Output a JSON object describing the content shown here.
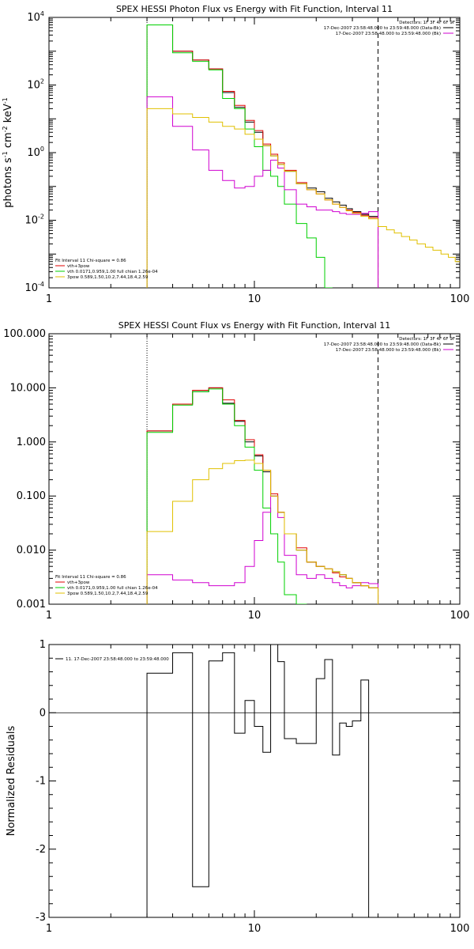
{
  "chart_data": [
    {
      "type": "line",
      "title": "SPEX HESSI Photon Flux vs Energy with Fit Function, Interval 11",
      "xlabel": "",
      "ylabel_parts": [
        "photons s",
        "-1",
        " cm",
        "-2",
        " keV",
        "-1"
      ],
      "xscale": "log",
      "yscale": "log",
      "xlim": [
        1,
        100
      ],
      "ylim": [
        0.0001,
        10000
      ],
      "x_ticks": [
        "1",
        "10",
        "100"
      ],
      "y_ticks": [
        {
          "base": "10",
          "exp": "-4"
        },
        {
          "base": "10",
          "exp": "-2"
        },
        {
          "base": "10",
          "exp": "0"
        },
        {
          "base": "10",
          "exp": "2"
        },
        {
          "base": "10",
          "exp": "4"
        }
      ],
      "detectors_text": "Detectors: 1F 3F 4F 6F 9F",
      "time_legend": [
        {
          "label": "17-Dec-2007 23:58:48.000 to 23:59:48.000 (Data-Bk)",
          "color": "#000000"
        },
        {
          "label": "17-Dec-2007 23:58:48.000 to 23:59:48.000 (Bk)",
          "color": "#d000d0"
        }
      ],
      "fit_legend_title": "Fit Interval 11    Chi-square = 0.86",
      "fit_legend": [
        {
          "label": "vth+3pow",
          "color": "#e00000"
        },
        {
          "label": "vth 0.0171,0.959,1.00  full chian 1.26e-04",
          "color": "#00d000"
        },
        {
          "label": "3pow 0.589,1.50,10.2,7.44,18.4,2.59",
          "color": "#e0c000"
        }
      ],
      "vlines": [
        {
          "x": 3,
          "style": "dotted",
          "color": "#000000"
        },
        {
          "x": 40,
          "style": "dashed",
          "color": "#000000"
        }
      ],
      "step_edges": [
        3.0,
        4.0,
        5.0,
        6.0,
        7.0,
        8.0,
        9.0,
        10.0,
        11.0,
        12.0,
        13.0,
        14.0,
        16.0,
        18.0,
        20.0,
        22.0,
        24.0,
        26.0,
        28.0,
        30.0,
        33.0,
        36.0,
        40.0
      ],
      "series": [
        {
          "color": "#000000",
          "values": [
            6000,
            1000,
            550,
            300,
            60,
            22,
            8,
            4,
            1.6,
            0.8,
            0.45,
            0.28,
            0.12,
            0.09,
            0.07,
            0.045,
            0.035,
            0.028,
            0.022,
            0.018,
            0.015,
            0.013
          ]
        },
        {
          "color": "#e00000",
          "values": [
            6000,
            1000,
            550,
            300,
            65,
            25,
            9,
            4.5,
            1.8,
            0.9,
            0.5,
            0.3,
            0.13,
            0.08,
            0.06,
            0.04,
            0.03,
            0.024,
            0.02,
            0.017,
            0.014,
            0.012
          ]
        },
        {
          "color": "#00d000",
          "values": [
            6000,
            900,
            500,
            280,
            40,
            20,
            5,
            1.5,
            0.3,
            0.2,
            0.1,
            0.03,
            0.008,
            0.003,
            0.0008,
            0.0001
          ]
        },
        {
          "color": "#d000d0",
          "values": [
            45,
            6,
            1.2,
            0.3,
            0.15,
            0.09,
            0.1,
            0.2,
            0.3,
            0.6,
            0.35,
            0.08,
            0.03,
            0.025,
            0.02,
            0.02,
            0.018,
            0.016,
            0.015,
            0.015,
            0.016,
            0.018
          ]
        },
        {
          "color": "#e0c000",
          "edges": [
            3.0,
            4.0,
            5.0,
            6.0,
            7.0,
            8.0,
            9.0,
            10.0,
            11.0,
            12.0,
            13.0,
            14.0,
            16.0,
            18.0,
            20.0,
            22.0,
            24.0,
            26.0,
            28.0,
            30.0,
            33.0,
            36.0,
            40.0,
            44.0,
            48.0,
            52.0,
            57.0,
            62.0,
            68.0,
            74.0,
            81.0,
            88.0,
            95.0,
            100.0
          ],
          "values": [
            20,
            14,
            11,
            8,
            6,
            5,
            3.5,
            2.5,
            1.6,
            0.8,
            0.45,
            0.28,
            0.12,
            0.08,
            0.06,
            0.04,
            0.03,
            0.024,
            0.019,
            0.016,
            0.013,
            0.011,
            0.0065,
            0.0052,
            0.0042,
            0.0033,
            0.0026,
            0.002,
            0.0016,
            0.0013,
            0.001,
            0.0008,
            0.0006
          ]
        }
      ]
    },
    {
      "type": "line",
      "title": "SPEX HESSI Count Flux vs Energy with Fit Function, Interval 11",
      "xlabel": "",
      "xscale": "log",
      "yscale": "log",
      "xlim": [
        1,
        100
      ],
      "ylim": [
        0.001,
        100
      ],
      "x_ticks": [
        "1",
        "10",
        "100"
      ],
      "y_ticks": [
        "0.001",
        "0.010",
        "0.100",
        "1.000",
        "10.000",
        "100.000"
      ],
      "detectors_text": "Detectors: 1F 3F 4F 6F 9F",
      "time_legend": [
        {
          "label": "17-Dec-2007 23:58:48.000 to 23:59:48.000 (Data-Bk)",
          "color": "#000000"
        },
        {
          "label": "17-Dec-2007 23:58:48.000 to 23:59:48.000 (Bk)",
          "color": "#d000d0"
        }
      ],
      "fit_legend_title": "Fit Interval 11    Chi-square = 0.86",
      "fit_legend": [
        {
          "label": "vth+3pow",
          "color": "#e00000"
        },
        {
          "label": "vth 0.0171,0.959,1.00  full chian 1.26e-04",
          "color": "#00d000"
        },
        {
          "label": "3pow 0.589,1.50,10.2,7.44,18.4,2.59",
          "color": "#e0c000"
        }
      ],
      "vlines": [
        {
          "x": 3,
          "style": "dotted",
          "color": "#000000"
        },
        {
          "x": 40,
          "style": "dashed",
          "color": "#000000"
        }
      ],
      "step_edges": [
        3.0,
        4.0,
        5.0,
        6.0,
        7.0,
        8.0,
        9.0,
        10.0,
        11.0,
        12.0,
        13.0,
        14.0,
        16.0,
        18.0,
        20.0,
        22.0,
        24.0,
        26.0,
        28.0,
        30.0,
        33.0,
        36.0,
        40.0
      ],
      "series": [
        {
          "color": "#000000",
          "values": [
            1.6,
            5,
            8.5,
            10,
            5.2,
            2.4,
            1.0,
            0.55,
            0.28,
            0.1,
            0.05,
            0.02,
            0.01,
            0.006,
            0.005,
            0.0045,
            0.004,
            0.0035,
            0.003,
            0.0025,
            0.0022,
            0.002
          ]
        },
        {
          "color": "#e00000",
          "values": [
            1.6,
            5,
            9,
            10,
            6,
            2.5,
            1.1,
            0.58,
            0.3,
            0.11,
            0.05,
            0.02,
            0.011,
            0.006,
            0.005,
            0.0045,
            0.0038,
            0.0032,
            0.003,
            0.0025,
            0.0022,
            0.002
          ]
        },
        {
          "color": "#00d000",
          "values": [
            1.5,
            4.8,
            8.5,
            9.5,
            5,
            2.0,
            0.8,
            0.3,
            0.06,
            0.02,
            0.006,
            0.0015,
            0.001
          ]
        },
        {
          "color": "#d000d0",
          "values": [
            0.0035,
            0.0028,
            0.0025,
            0.0022,
            0.0022,
            0.0025,
            0.005,
            0.015,
            0.05,
            0.1,
            0.04,
            0.008,
            0.0035,
            0.003,
            0.0035,
            0.003,
            0.0025,
            0.0022,
            0.002,
            0.0022,
            0.0025,
            0.0024
          ]
        },
        {
          "color": "#e0c000",
          "values": [
            0.022,
            0.08,
            0.2,
            0.32,
            0.4,
            0.45,
            0.46,
            0.4,
            0.3,
            0.1,
            0.05,
            0.02,
            0.01,
            0.006,
            0.005,
            0.0045,
            0.004,
            0.0035,
            0.003,
            0.0025,
            0.0022,
            0.002
          ]
        }
      ]
    },
    {
      "type": "line",
      "title": "",
      "xlabel": "",
      "ylabel": "Normalized Residuals",
      "xscale": "log",
      "yscale": "linear",
      "xlim": [
        1,
        100
      ],
      "ylim": [
        -3,
        1
      ],
      "x_ticks": [
        "1",
        "10",
        "100"
      ],
      "y_ticks": [
        "-3",
        "-2",
        "-1",
        "0",
        "1"
      ],
      "legend": [
        {
          "label": "11. 17-Dec-2007 23:58:48.000 to 23:59:48.000",
          "color": "#000000"
        }
      ],
      "step_edges": [
        3.0,
        4.0,
        5.0,
        6.0,
        7.0,
        8.0,
        9.0,
        10.0,
        11.0,
        12.0,
        13.0,
        14.0,
        16.0,
        18.0,
        20.0,
        22.0,
        24.0,
        26.0,
        28.0,
        30.0,
        33.0,
        36.0,
        40.0
      ],
      "series": [
        {
          "color": "#000000",
          "values": [
            0.58,
            0.88,
            -2.55,
            0.76,
            0.88,
            -0.3,
            0.18,
            -0.2,
            -0.58,
            1.0,
            0.75,
            -0.38,
            -0.45,
            -0.45,
            0.5,
            0.78,
            -0.62,
            -0.15,
            -0.2,
            -0.12,
            0.48,
            -3.0
          ]
        }
      ]
    }
  ]
}
